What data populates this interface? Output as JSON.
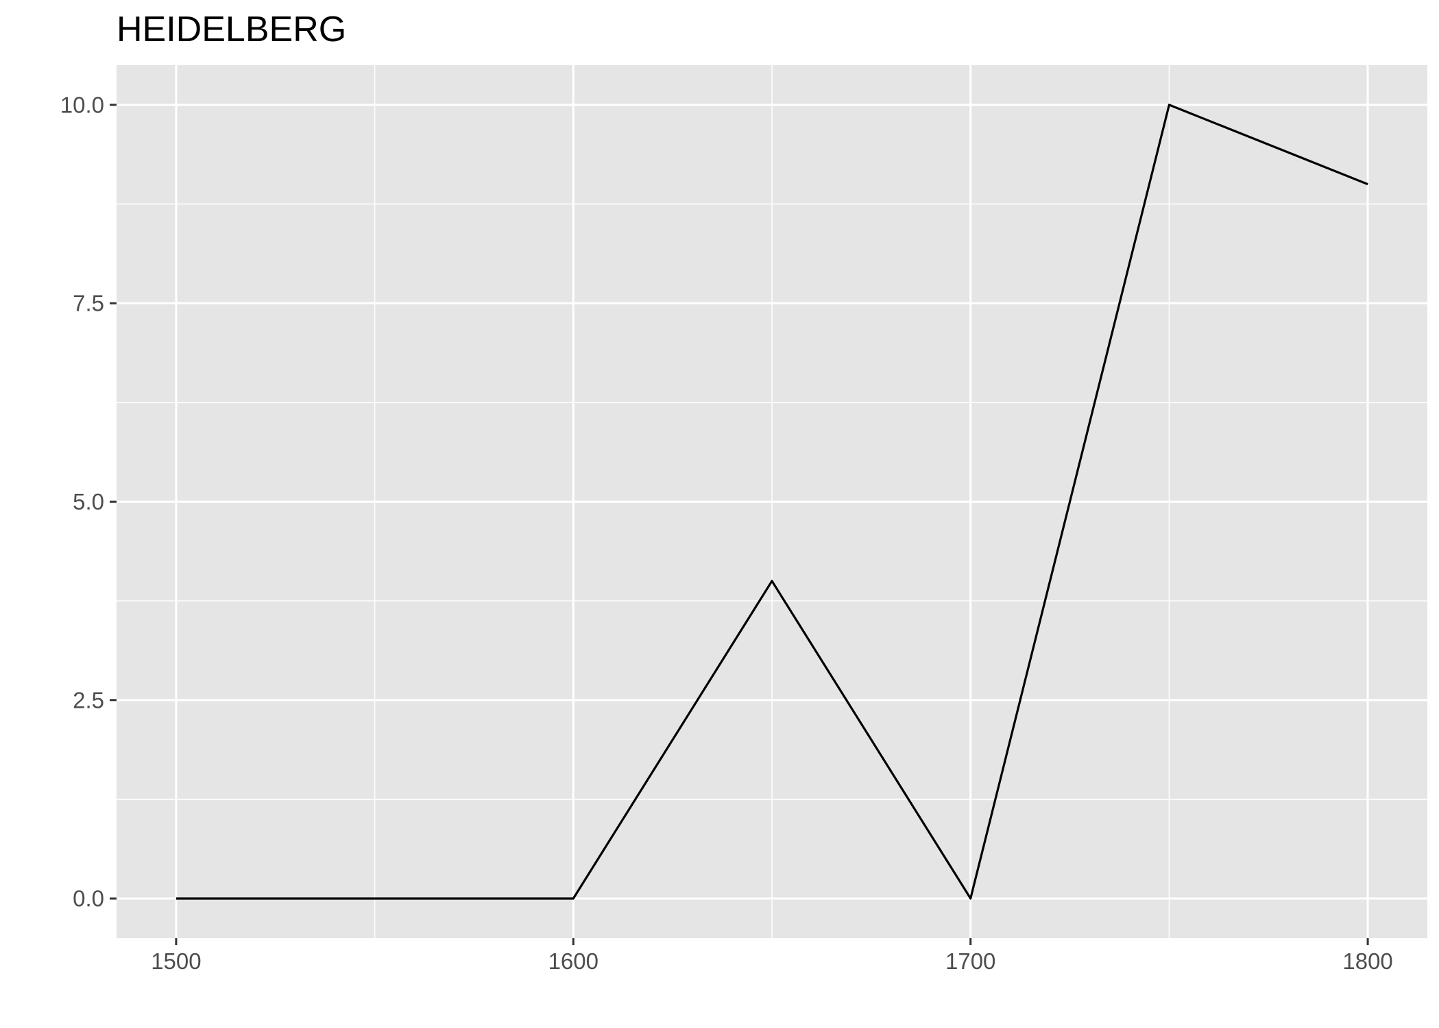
{
  "chart_data": {
    "type": "line",
    "title": "HEIDELBERG",
    "xlabel": "",
    "ylabel": "",
    "x": [
      1500,
      1550,
      1600,
      1650,
      1700,
      1750,
      1800
    ],
    "series": [
      {
        "values": [
          0,
          0,
          0,
          4,
          0,
          10,
          9
        ]
      }
    ],
    "xlim": [
      1485,
      1815
    ],
    "ylim": [
      -0.5,
      10.5
    ],
    "x_ticks": [
      1500,
      1600,
      1700,
      1800
    ],
    "x_tick_labels": [
      "1500",
      "1600",
      "1700",
      "1800"
    ],
    "x_minor_ticks": [
      1550,
      1650,
      1750
    ],
    "y_ticks": [
      0,
      2.5,
      5,
      7.5,
      10
    ],
    "y_tick_labels": [
      "0.0",
      "2.5",
      "5.0",
      "7.5",
      "10.0"
    ],
    "y_minor_ticks": [
      1.25,
      3.75,
      6.25,
      8.75
    ],
    "grid": true,
    "legend": "none",
    "colors": {
      "panel_background": "#e5e5e5",
      "grid_line": "#ffffff",
      "series_line": "#000000",
      "tick_text": "#4d4d4d",
      "tick_mark": "#333333"
    }
  }
}
